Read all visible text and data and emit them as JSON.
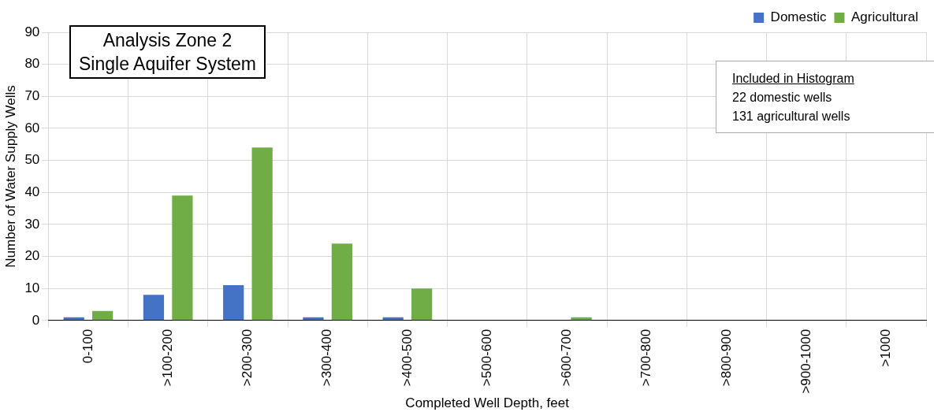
{
  "chart_data": {
    "type": "bar",
    "title": "Analysis Zone 2",
    "subtitle": "Single Aquifer System",
    "categories": [
      "0-100",
      ">100-200",
      ">200-300",
      ">300-400",
      ">400-500",
      ">500-600",
      ">600-700",
      ">700-800",
      ">800-900",
      ">900-1000",
      ">1000"
    ],
    "series": [
      {
        "name": "Domestic",
        "color": "#4472c4",
        "values": [
          1,
          8,
          11,
          1,
          1,
          0,
          0,
          0,
          0,
          0,
          0
        ]
      },
      {
        "name": "Agricultural",
        "color": "#70ad47",
        "values": [
          3,
          39,
          54,
          24,
          10,
          0,
          1,
          0,
          0,
          0,
          0
        ]
      }
    ],
    "xlabel": "Completed Well Depth, feet",
    "ylabel": "Number of Water Supply Wells",
    "ylim": [
      0,
      90
    ],
    "yticks": [
      0,
      10,
      20,
      30,
      40,
      50,
      60,
      70,
      80,
      90
    ],
    "grid": true,
    "legend": "top right",
    "annotations": [
      "Included in Histogram",
      "22 domestic wells",
      "131 agricultural wells"
    ]
  }
}
